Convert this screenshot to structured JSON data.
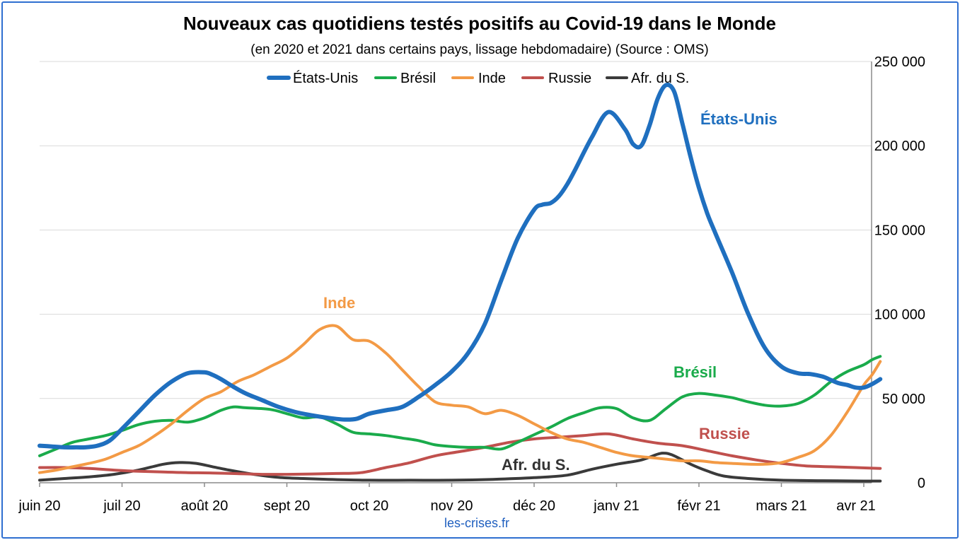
{
  "chart_data": {
    "type": "line",
    "title": "Nouveaux cas quotidiens testés positifs au Covid-19 dans le Monde",
    "subtitle": "(en 2020 et 2021 dans certains pays, lissage hebdomadaire) (Source : OMS)",
    "source_label": "les-crises.fr",
    "x_tick_labels": [
      "juin 20",
      "juil 20",
      "août 20",
      "sept 20",
      "oct 20",
      "nov 20",
      "déc 20",
      "janv 21",
      "févr 21",
      "mars 21",
      "avr 21"
    ],
    "y_tick_labels": [
      "0",
      "50 000",
      "100 000",
      "150 000",
      "200 000",
      "250 000"
    ],
    "y_ticks": [
      0,
      50000,
      100000,
      150000,
      200000,
      250000
    ],
    "ylim": [
      0,
      250000
    ],
    "xlim": [
      0,
      10.2
    ],
    "y_axis_position": "right",
    "grid": true,
    "legend": "top",
    "series": [
      {
        "name": "États-Unis",
        "annotation": "États-Unis",
        "color": "#1f6fbf",
        "width": 6,
        "x": [
          0,
          0.15,
          0.3,
          0.45,
          0.55,
          0.7,
          0.85,
          1,
          1.2,
          1.4,
          1.6,
          1.8,
          2,
          2.1,
          2.2,
          2.35,
          2.5,
          2.7,
          2.9,
          3.1,
          3.3,
          3.5,
          3.7,
          3.85,
          4,
          4.2,
          4.4,
          4.6,
          4.8,
          5,
          5.2,
          5.4,
          5.6,
          5.8,
          6,
          6.1,
          6.2,
          6.3,
          6.4,
          6.5,
          6.7,
          6.9,
          7.1,
          7.2,
          7.3,
          7.4,
          7.5,
          7.6,
          7.7,
          7.8,
          7.9,
          8,
          8.1,
          8.2,
          8.4,
          8.6,
          8.8,
          9,
          9.2,
          9.35,
          9.5,
          9.6,
          9.7,
          9.8,
          9.9,
          10,
          10.1,
          10.2
        ],
        "y": [
          22000,
          21500,
          21000,
          21000,
          21000,
          22000,
          25000,
          32000,
          42000,
          52000,
          60000,
          65000,
          65500,
          64000,
          61500,
          57000,
          53000,
          49000,
          45000,
          42000,
          40000,
          38500,
          37500,
          38000,
          41000,
          43000,
          45000,
          51000,
          58000,
          66000,
          77000,
          94000,
          120000,
          145000,
          162000,
          165000,
          166000,
          170000,
          177000,
          186000,
          205000,
          220000,
          210000,
          201000,
          200000,
          212000,
          228000,
          236000,
          232000,
          213000,
          193000,
          175000,
          160000,
          148000,
          125000,
          100000,
          80000,
          69000,
          65000,
          64500,
          63000,
          61000,
          59000,
          58000,
          56500,
          56500,
          58500,
          61500
        ]
      },
      {
        "name": "Brésil",
        "annotation": "Brésil",
        "color": "#1aab4b",
        "width": 4,
        "x": [
          0,
          0.2,
          0.4,
          0.6,
          0.8,
          1,
          1.2,
          1.4,
          1.6,
          1.8,
          2,
          2.2,
          2.35,
          2.5,
          2.8,
          3,
          3.2,
          3.4,
          3.6,
          3.8,
          4,
          4.2,
          4.4,
          4.6,
          4.8,
          5,
          5.2,
          5.4,
          5.6,
          5.8,
          6,
          6.2,
          6.4,
          6.6,
          6.8,
          7,
          7.2,
          7.4,
          7.6,
          7.8,
          8,
          8.2,
          8.4,
          8.6,
          8.8,
          9,
          9.2,
          9.4,
          9.6,
          9.8,
          10,
          10.1,
          10.2
        ],
        "y": [
          16000,
          20000,
          24000,
          26000,
          28000,
          31000,
          34500,
          36500,
          37000,
          36000,
          38500,
          43000,
          45000,
          44500,
          43500,
          41000,
          38500,
          39000,
          35000,
          30000,
          29000,
          28000,
          26500,
          25000,
          22500,
          21500,
          21000,
          21000,
          20000,
          24000,
          28500,
          33000,
          38000,
          41500,
          44500,
          44000,
          38500,
          37000,
          44000,
          51000,
          53000,
          52000,
          50500,
          48000,
          46000,
          45500,
          47000,
          52000,
          60000,
          66000,
          70000,
          73000,
          75000
        ]
      },
      {
        "name": "Inde",
        "annotation": "Inde",
        "color": "#f39a45",
        "width": 4,
        "x": [
          0,
          0.2,
          0.4,
          0.6,
          0.8,
          1,
          1.2,
          1.4,
          1.6,
          1.8,
          2,
          2.2,
          2.4,
          2.6,
          2.8,
          3,
          3.2,
          3.4,
          3.6,
          3.8,
          4,
          4.2,
          4.4,
          4.6,
          4.8,
          5,
          5.2,
          5.4,
          5.6,
          5.8,
          6,
          6.2,
          6.4,
          6.6,
          6.8,
          7,
          7.2,
          7.4,
          7.6,
          7.8,
          8,
          8.2,
          8.4,
          8.6,
          8.8,
          9,
          9.2,
          9.4,
          9.6,
          9.8,
          10,
          10.1,
          10.2
        ],
        "y": [
          6000,
          7500,
          9500,
          11500,
          14000,
          18000,
          22000,
          28000,
          35000,
          43000,
          50000,
          54000,
          60000,
          64000,
          69000,
          74000,
          82000,
          91000,
          93000,
          85000,
          84000,
          77000,
          67000,
          57000,
          48000,
          46000,
          45000,
          41000,
          43000,
          40000,
          35000,
          30000,
          26000,
          24000,
          21000,
          18000,
          16000,
          15000,
          14000,
          13000,
          13000,
          12000,
          11500,
          11000,
          11000,
          12000,
          15000,
          19000,
          28000,
          42000,
          58000,
          64000,
          72000
        ]
      },
      {
        "name": "Russie",
        "annotation": "Russie",
        "color": "#c0504d",
        "width": 4,
        "x": [
          0,
          0.3,
          0.6,
          0.9,
          1.2,
          1.5,
          1.8,
          2.1,
          2.4,
          2.7,
          3,
          3.3,
          3.6,
          3.9,
          4.2,
          4.5,
          4.8,
          5.1,
          5.4,
          5.7,
          6,
          6.3,
          6.6,
          6.9,
          7.2,
          7.5,
          7.8,
          8.1,
          8.4,
          8.7,
          9,
          9.3,
          9.6,
          9.9,
          10.2
        ],
        "y": [
          9000,
          9000,
          8500,
          7500,
          6800,
          6400,
          6000,
          5800,
          5400,
          5000,
          5000,
          5200,
          5500,
          6000,
          9000,
          12000,
          16000,
          18500,
          21000,
          24000,
          26000,
          27000,
          28000,
          29000,
          26000,
          23500,
          22000,
          19000,
          16000,
          13500,
          11500,
          10000,
          9500,
          9000,
          8500
        ]
      },
      {
        "name": "Afr. du S.",
        "annotation": "Afr. du S.",
        "color": "#3a3a3a",
        "width": 4,
        "x": [
          0,
          0.3,
          0.6,
          0.9,
          1.2,
          1.5,
          1.7,
          1.9,
          2.1,
          2.3,
          2.6,
          2.9,
          3.2,
          3.5,
          4,
          4.5,
          5,
          5.5,
          6,
          6.4,
          6.7,
          7,
          7.3,
          7.5,
          7.6,
          7.7,
          7.9,
          8.1,
          8.3,
          8.6,
          9,
          9.5,
          10,
          10.2
        ],
        "y": [
          1500,
          2500,
          3500,
          5000,
          7500,
          11000,
          12000,
          11500,
          9500,
          7500,
          5000,
          3200,
          2500,
          2000,
          1500,
          1500,
          1500,
          2000,
          3000,
          4500,
          8000,
          11000,
          13500,
          17000,
          17500,
          16000,
          11000,
          7000,
          4000,
          2500,
          1500,
          1200,
          1000,
          1000
        ]
      }
    ]
  }
}
